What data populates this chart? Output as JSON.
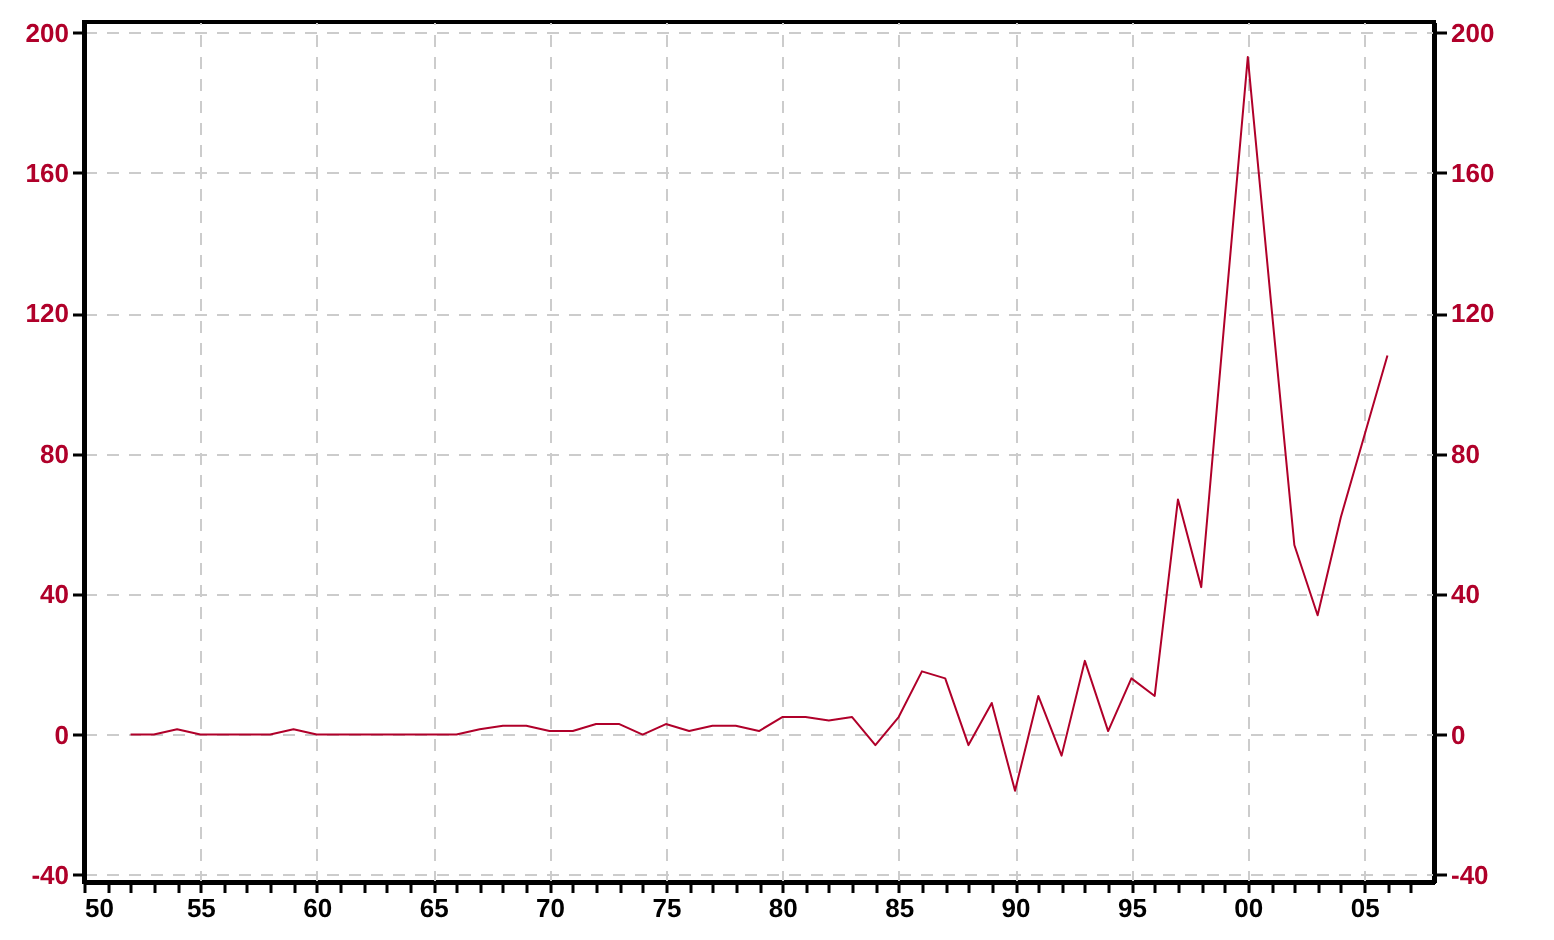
{
  "chart_data": {
    "type": "line",
    "x": [
      1952,
      1953,
      1954,
      1955,
      1956,
      1957,
      1958,
      1959,
      1960,
      1961,
      1962,
      1963,
      1964,
      1965,
      1966,
      1967,
      1968,
      1969,
      1970,
      1971,
      1972,
      1973,
      1974,
      1975,
      1976,
      1977,
      1978,
      1979,
      1980,
      1981,
      1982,
      1983,
      1984,
      1985,
      1986,
      1987,
      1988,
      1989,
      1990,
      1991,
      1992,
      1993,
      1994,
      1995,
      1996,
      1997,
      1998,
      1999,
      2000,
      2001,
      2002,
      2003,
      2004,
      2005,
      2006
    ],
    "series": [
      {
        "color": "#b0002a",
        "values": [
          0,
          0,
          1.5,
          0,
          0,
          0,
          0,
          1.5,
          0,
          0,
          0,
          0,
          0,
          0,
          0,
          1.5,
          2.5,
          2.5,
          1,
          1,
          3,
          3,
          0,
          3,
          1,
          2.5,
          2.5,
          1,
          5,
          5,
          4,
          5,
          -3,
          5,
          18,
          16,
          -3,
          9,
          -16,
          11,
          -6,
          21,
          1,
          16,
          11,
          67,
          42,
          118,
          193,
          123,
          54,
          34,
          62,
          85,
          108
        ]
      }
    ],
    "xlim": [
      1950,
      2008
    ],
    "xticks": [
      {
        "value": 1950,
        "label": "50"
      },
      {
        "value": 1951,
        "label": null
      },
      {
        "value": 1952,
        "label": null
      },
      {
        "value": 1953,
        "label": null
      },
      {
        "value": 1954,
        "label": null
      },
      {
        "value": 1955,
        "label": "55"
      },
      {
        "value": 1956,
        "label": null
      },
      {
        "value": 1957,
        "label": null
      },
      {
        "value": 1958,
        "label": null
      },
      {
        "value": 1959,
        "label": null
      },
      {
        "value": 1960,
        "label": "60"
      },
      {
        "value": 1961,
        "label": null
      },
      {
        "value": 1962,
        "label": null
      },
      {
        "value": 1963,
        "label": null
      },
      {
        "value": 1964,
        "label": null
      },
      {
        "value": 1965,
        "label": "65"
      },
      {
        "value": 1966,
        "label": null
      },
      {
        "value": 1967,
        "label": null
      },
      {
        "value": 1968,
        "label": null
      },
      {
        "value": 1969,
        "label": null
      },
      {
        "value": 1970,
        "label": "70"
      },
      {
        "value": 1971,
        "label": null
      },
      {
        "value": 1972,
        "label": null
      },
      {
        "value": 1973,
        "label": null
      },
      {
        "value": 1974,
        "label": null
      },
      {
        "value": 1975,
        "label": "75"
      },
      {
        "value": 1976,
        "label": null
      },
      {
        "value": 1977,
        "label": null
      },
      {
        "value": 1978,
        "label": null
      },
      {
        "value": 1979,
        "label": null
      },
      {
        "value": 1980,
        "label": "80"
      },
      {
        "value": 1981,
        "label": null
      },
      {
        "value": 1982,
        "label": null
      },
      {
        "value": 1983,
        "label": null
      },
      {
        "value": 1984,
        "label": null
      },
      {
        "value": 1985,
        "label": "85"
      },
      {
        "value": 1986,
        "label": null
      },
      {
        "value": 1987,
        "label": null
      },
      {
        "value": 1988,
        "label": null
      },
      {
        "value": 1989,
        "label": null
      },
      {
        "value": 1990,
        "label": "90"
      },
      {
        "value": 1991,
        "label": null
      },
      {
        "value": 1992,
        "label": null
      },
      {
        "value": 1993,
        "label": null
      },
      {
        "value": 1994,
        "label": null
      },
      {
        "value": 1995,
        "label": "95"
      },
      {
        "value": 1996,
        "label": null
      },
      {
        "value": 1997,
        "label": null
      },
      {
        "value": 1998,
        "label": null
      },
      {
        "value": 1999,
        "label": null
      },
      {
        "value": 2000,
        "label": "00"
      },
      {
        "value": 2001,
        "label": null
      },
      {
        "value": 2002,
        "label": null
      },
      {
        "value": 2003,
        "label": null
      },
      {
        "value": 2004,
        "label": null
      },
      {
        "value": 2005,
        "label": "05"
      },
      {
        "value": 2006,
        "label": null
      },
      {
        "value": 2007,
        "label": null
      }
    ],
    "ylim": [
      -42,
      203
    ],
    "yticks": [
      -40,
      0,
      40,
      80,
      120,
      160,
      200
    ],
    "y2lim": [
      -42,
      203
    ],
    "y2ticks": [
      -40,
      0,
      40,
      80,
      120,
      160,
      200
    ],
    "grid": true
  }
}
